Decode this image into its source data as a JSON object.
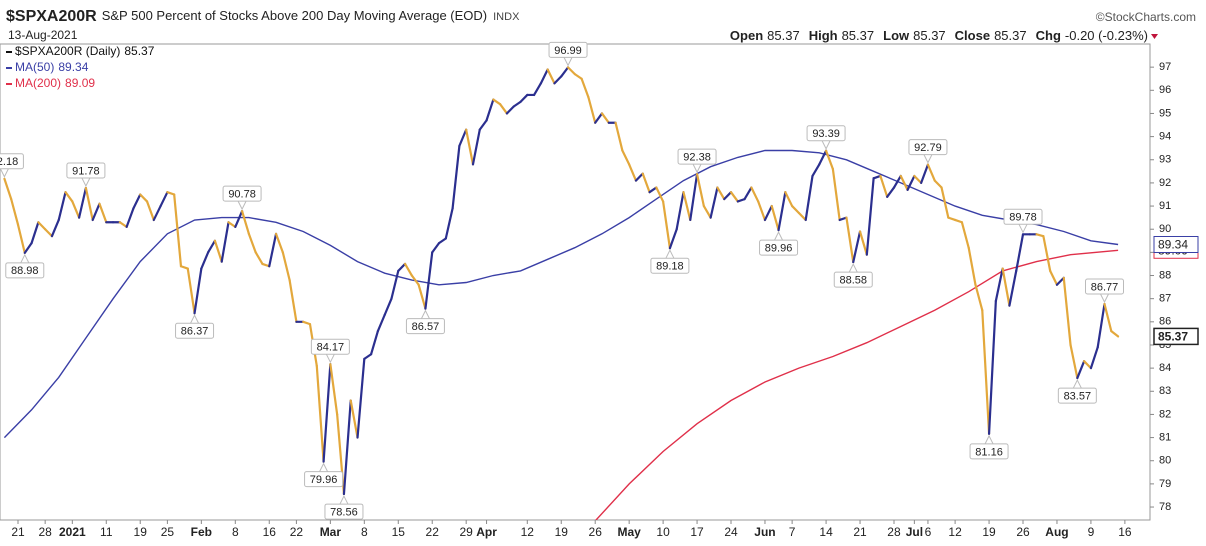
{
  "header": {
    "symbol": "$SPXA200R",
    "title": "S&P 500 Percent of Stocks Above 200 Day Moving Average (EOD)",
    "exchange": "INDX",
    "date": "13-Aug-2021",
    "source": "©StockCharts.com",
    "quote": [
      {
        "label": "Open",
        "value": "85.37"
      },
      {
        "label": "High",
        "value": "85.37"
      },
      {
        "label": "Low",
        "value": "85.37"
      },
      {
        "label": "Close",
        "value": "85.37"
      },
      {
        "label": "Chg",
        "value": "-0.20 (-0.23%)"
      }
    ],
    "chg_color": "#c0143c"
  },
  "chart_data": {
    "type": "line",
    "xlim": [
      -2.65,
      166.7
    ],
    "ylim": [
      77.44,
      98.0
    ],
    "yticks": [
      78,
      79,
      80,
      81,
      82,
      83,
      84,
      85,
      86,
      87,
      88,
      89,
      90,
      91,
      92,
      93,
      94,
      95,
      96,
      97
    ],
    "xticks": [
      {
        "value": 0,
        "label": "21"
      },
      {
        "value": 4,
        "label": "28"
      },
      {
        "value": 8,
        "label": "2021",
        "bold": true
      },
      {
        "value": 13,
        "label": "11"
      },
      {
        "value": 18,
        "label": "19"
      },
      {
        "value": 22,
        "label": "25"
      },
      {
        "value": 27,
        "label": "Feb",
        "bold": true
      },
      {
        "value": 32,
        "label": "8"
      },
      {
        "value": 37,
        "label": "16"
      },
      {
        "value": 41,
        "label": "22"
      },
      {
        "value": 46,
        "label": "Mar",
        "bold": true
      },
      {
        "value": 51,
        "label": "8"
      },
      {
        "value": 56,
        "label": "15"
      },
      {
        "value": 61,
        "label": "22"
      },
      {
        "value": 66,
        "label": "29"
      },
      {
        "value": 69,
        "label": "Apr",
        "bold": true
      },
      {
        "value": 75,
        "label": "12"
      },
      {
        "value": 80,
        "label": "19"
      },
      {
        "value": 85,
        "label": "26"
      },
      {
        "value": 90,
        "label": "May",
        "bold": true
      },
      {
        "value": 95,
        "label": "10"
      },
      {
        "value": 100,
        "label": "17"
      },
      {
        "value": 105,
        "label": "24"
      },
      {
        "value": 110,
        "label": "Jun",
        "bold": true
      },
      {
        "value": 114,
        "label": "7"
      },
      {
        "value": 119,
        "label": "14"
      },
      {
        "value": 124,
        "label": "21"
      },
      {
        "value": 129,
        "label": "28"
      },
      {
        "value": 132,
        "label": "Jul",
        "bold": true
      },
      {
        "value": 134,
        "label": "6"
      },
      {
        "value": 138,
        "label": "12"
      },
      {
        "value": 143,
        "label": "19"
      },
      {
        "value": 148,
        "label": "26"
      },
      {
        "value": 153,
        "label": "Aug",
        "bold": true
      },
      {
        "value": 158,
        "label": "9"
      },
      {
        "value": 163,
        "label": "16"
      }
    ],
    "grid": false,
    "series": [
      {
        "name": "$SPXA200R (Daily)",
        "legend_value": "85.37",
        "color": "#2b2f8f",
        "down_color": "#e3a83c",
        "legend_color": "#111111",
        "x": [
          -2,
          -1,
          0,
          1,
          2,
          3,
          4,
          5,
          6,
          7,
          8,
          9,
          10,
          11,
          12,
          13,
          14,
          15,
          16,
          17,
          18,
          19,
          20,
          21,
          22,
          23,
          24,
          25,
          26,
          27,
          28,
          29,
          30,
          31,
          32,
          33,
          34,
          35,
          36,
          37,
          38,
          39,
          40,
          41,
          42,
          43,
          44,
          45,
          46,
          47,
          48,
          49,
          50,
          51,
          52,
          53,
          54,
          55,
          56,
          57,
          58,
          59,
          60,
          61,
          62,
          63,
          64,
          65,
          66,
          67,
          68,
          69,
          70,
          71,
          72,
          73,
          74,
          75,
          76,
          77,
          78,
          79,
          80,
          81,
          82,
          83,
          84,
          85,
          86,
          87,
          88,
          89,
          90,
          91,
          92,
          93,
          94,
          95,
          96,
          97,
          98,
          99,
          100,
          101,
          102,
          103,
          104,
          105,
          106,
          107,
          108,
          109,
          110,
          111,
          112,
          113,
          114,
          115,
          116,
          117,
          118,
          119,
          120,
          121,
          122,
          123,
          124,
          125,
          126,
          127,
          128,
          129,
          130,
          131,
          132,
          133,
          134,
          135,
          136,
          137,
          138,
          139,
          140,
          141,
          142,
          143,
          144,
          145,
          146,
          147,
          148,
          149,
          150,
          151,
          152,
          153,
          154,
          155,
          156,
          157,
          158,
          159,
          160,
          161,
          162
        ],
        "values": [
          92.18,
          91.3,
          90.2,
          88.98,
          89.4,
          90.3,
          90.0,
          89.7,
          90.4,
          91.6,
          91.2,
          90.5,
          91.78,
          90.4,
          91.1,
          90.3,
          90.3,
          90.3,
          90.1,
          90.9,
          91.5,
          91.2,
          90.4,
          91.0,
          91.6,
          91.5,
          88.4,
          88.3,
          86.37,
          88.3,
          89.0,
          89.5,
          88.6,
          90.3,
          90.1,
          90.78,
          89.8,
          89.0,
          88.5,
          88.4,
          89.8,
          89.0,
          87.8,
          86.0,
          86.0,
          85.9,
          84.1,
          79.96,
          84.17,
          82.0,
          78.56,
          82.6,
          81.0,
          84.4,
          84.6,
          85.6,
          86.3,
          87.0,
          88.2,
          88.5,
          88.0,
          87.6,
          86.57,
          89.0,
          89.4,
          89.6,
          90.9,
          93.6,
          94.3,
          92.8,
          94.3,
          94.7,
          95.6,
          95.4,
          95.0,
          95.3,
          95.5,
          95.8,
          95.8,
          96.3,
          96.9,
          96.3,
          96.6,
          96.99,
          96.7,
          96.5,
          95.7,
          94.6,
          95.0,
          94.6,
          94.6,
          93.4,
          92.8,
          92.1,
          92.4,
          91.6,
          91.8,
          91.2,
          89.18,
          90.0,
          91.6,
          90.4,
          92.38,
          91.0,
          90.5,
          91.8,
          91.3,
          91.6,
          91.2,
          91.3,
          91.8,
          91.2,
          90.4,
          91.0,
          89.96,
          91.6,
          91.0,
          90.7,
          90.4,
          92.3,
          92.8,
          93.39,
          92.6,
          90.4,
          90.5,
          88.58,
          89.9,
          88.9,
          92.2,
          92.3,
          91.4,
          91.8,
          92.3,
          91.7,
          92.3,
          92.0,
          92.79,
          92.1,
          91.8,
          90.5,
          90.4,
          90.3,
          89.2,
          87.6,
          86.5,
          81.16,
          86.9,
          88.3,
          86.7,
          88.2,
          89.78,
          89.78,
          89.78,
          89.7,
          88.2,
          87.6,
          87.9,
          85.0,
          83.57,
          84.3,
          84.0,
          84.9,
          86.77,
          85.6,
          85.37
        ]
      },
      {
        "name": "MA(50)",
        "legend_value": "89.34",
        "color": "#3a3fa6",
        "x": [
          -2,
          2,
          6,
          10,
          14,
          18,
          22,
          26,
          30,
          34,
          38,
          42,
          46,
          50,
          54,
          58,
          62,
          66,
          70,
          74,
          78,
          82,
          86,
          90,
          94,
          98,
          102,
          106,
          110,
          114,
          118,
          122,
          126,
          130,
          134,
          138,
          142,
          146,
          150,
          154,
          158,
          162
        ],
        "values": [
          81.0,
          82.2,
          83.6,
          85.3,
          87.0,
          88.6,
          89.8,
          90.4,
          90.5,
          90.5,
          90.3,
          89.9,
          89.3,
          88.6,
          88.1,
          87.8,
          87.6,
          87.7,
          88.0,
          88.2,
          88.7,
          89.2,
          89.8,
          90.5,
          91.3,
          92.1,
          92.7,
          93.1,
          93.4,
          93.4,
          93.3,
          93.0,
          92.5,
          92.0,
          91.5,
          91.0,
          90.6,
          90.4,
          90.2,
          89.9,
          89.5,
          89.34
        ]
      },
      {
        "name": "MA(200)",
        "legend_value": "89.09",
        "color": "#e0304a",
        "x": [
          85,
          90,
          95,
          100,
          105,
          110,
          115,
          120,
          125,
          130,
          135,
          140,
          145,
          150,
          155,
          162
        ],
        "values": [
          77.4,
          79.0,
          80.4,
          81.6,
          82.6,
          83.4,
          84.0,
          84.5,
          85.1,
          85.8,
          86.5,
          87.3,
          88.2,
          88.6,
          88.9,
          89.09
        ]
      }
    ],
    "annotations": [
      {
        "x": -2,
        "y": 92.18,
        "text": "92.18"
      },
      {
        "x": 1,
        "y": 88.98,
        "text": "88.98"
      },
      {
        "x": 10,
        "y": 91.78,
        "text": "91.78"
      },
      {
        "x": 26,
        "y": 86.37,
        "text": "86.37"
      },
      {
        "x": 33,
        "y": 90.78,
        "text": "90.78"
      },
      {
        "x": 45,
        "y": 79.96,
        "text": "79.96"
      },
      {
        "x": 46,
        "y": 84.17,
        "text": "84.17"
      },
      {
        "x": 48,
        "y": 78.56,
        "text": "78.56"
      },
      {
        "x": 60,
        "y": 86.57,
        "text": "86.57"
      },
      {
        "x": 81,
        "y": 96.99,
        "text": "96.99"
      },
      {
        "x": 96,
        "y": 89.18,
        "text": "89.18"
      },
      {
        "x": 100,
        "y": 92.38,
        "text": "92.38"
      },
      {
        "x": 112,
        "y": 89.96,
        "text": "89.96"
      },
      {
        "x": 119,
        "y": 93.39,
        "text": "93.39"
      },
      {
        "x": 123,
        "y": 88.58,
        "text": "88.58"
      },
      {
        "x": 134,
        "y": 92.79,
        "text": "92.79"
      },
      {
        "x": 143,
        "y": 81.16,
        "text": "81.16"
      },
      {
        "x": 148,
        "y": 89.78,
        "text": "89.78"
      },
      {
        "x": 156,
        "y": 83.57,
        "text": "83.57"
      },
      {
        "x": 160,
        "y": 86.77,
        "text": "86.77"
      }
    ]
  }
}
